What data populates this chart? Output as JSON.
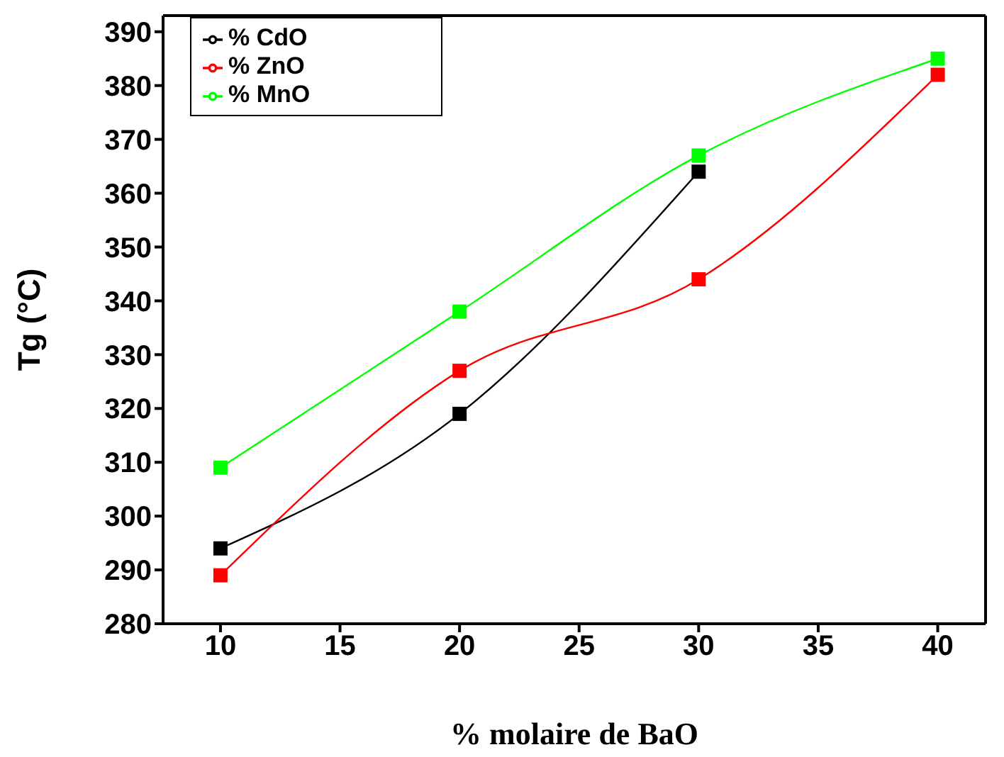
{
  "chart_data": {
    "type": "line",
    "xlabel": "% molaire de BaO",
    "ylabel": "Tg (°C)",
    "xlim": [
      7.6,
      42
    ],
    "xticks": [
      10,
      15,
      20,
      25,
      30,
      35,
      40
    ],
    "ylim": [
      280,
      393
    ],
    "yticks": [
      280,
      290,
      300,
      310,
      320,
      330,
      340,
      350,
      360,
      370,
      380,
      390
    ],
    "grid": false,
    "legend": "top left",
    "marker": "square",
    "line_style": "solid",
    "series": [
      {
        "name": "% CdO",
        "color": "#000000",
        "x": [
          10,
          20,
          30
        ],
        "values": [
          294,
          319,
          364
        ]
      },
      {
        "name": "% ZnO",
        "color": "#ff0000",
        "x": [
          10,
          20,
          30,
          40
        ],
        "values": [
          289,
          327,
          344,
          382
        ]
      },
      {
        "name": "% MnO",
        "color": "#00ff00",
        "x": [
          10,
          20,
          30,
          40
        ],
        "values": [
          309,
          338,
          367,
          385
        ]
      }
    ]
  }
}
